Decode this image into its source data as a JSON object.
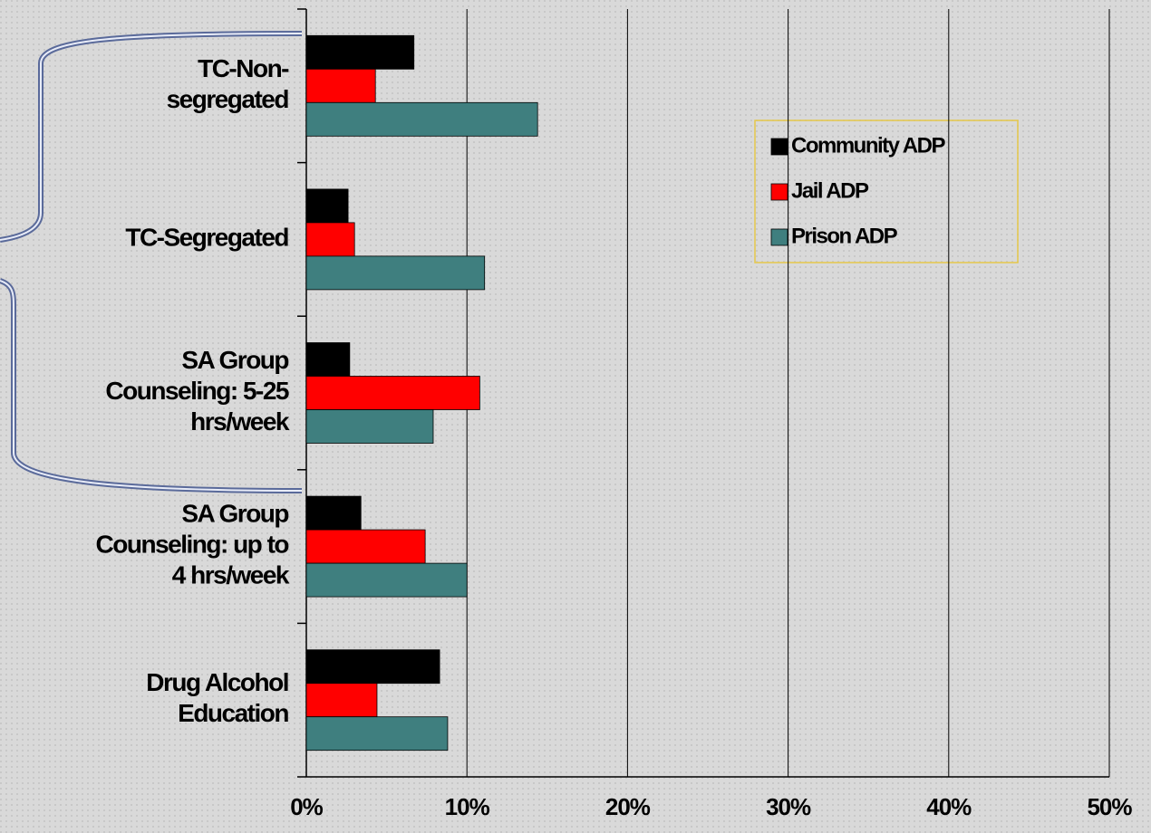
{
  "chart_data": {
    "type": "bar",
    "orientation": "horizontal",
    "categories": [
      "TC-Non-\nsegregated",
      "TC-Segregated",
      "SA Group\nCounseling: 5-25\nhrs/week",
      "SA Group\nCounseling:  up to\n4 hrs/week",
      "Drug Alcohol\nEducation"
    ],
    "series": [
      {
        "name": "Community ADP",
        "color": "#000000",
        "values": [
          6.7,
          2.6,
          2.7,
          3.4,
          8.3
        ]
      },
      {
        "name": "Jail ADP",
        "color": "#ff0000",
        "values": [
          4.3,
          3.0,
          10.8,
          7.4,
          4.4
        ]
      },
      {
        "name": "Prison ADP",
        "color": "#3f7f7f",
        "values": [
          14.4,
          11.1,
          7.9,
          10.0,
          8.8
        ]
      }
    ],
    "xlim": [
      0,
      50
    ],
    "xticks": [
      {
        "value": 0,
        "label": "0%"
      },
      {
        "value": 10,
        "label": "10%"
      },
      {
        "value": 20,
        "label": "20%"
      },
      {
        "value": 30,
        "label": "30%"
      },
      {
        "value": 40,
        "label": "40%"
      },
      {
        "value": 50,
        "label": "50%"
      }
    ],
    "grid": true
  }
}
